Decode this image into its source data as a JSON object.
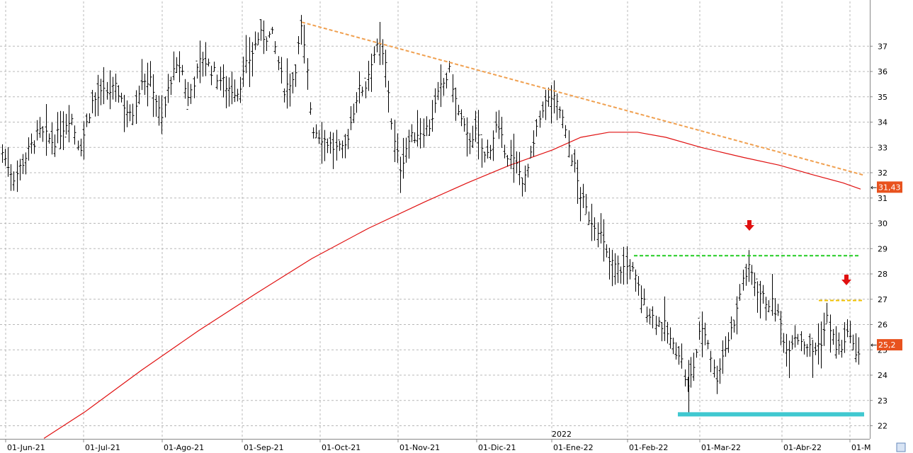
{
  "chart_data": {
    "type": "ohlc",
    "x_labels": [
      "01-Jun-21",
      "01-Jul-21",
      "01-Ago-21",
      "01-Sep-21",
      "01-Oct-21",
      "01-Nov-21",
      "01-Dic-21",
      "01-Ene-22",
      "01-Feb-22",
      "01-Mar-22",
      "01-Abr-22",
      "01-M"
    ],
    "year_label": "2022",
    "y_ticks": [
      22,
      23,
      24,
      25,
      26,
      27,
      28,
      29,
      30,
      31,
      32,
      33,
      34,
      35,
      36,
      37
    ],
    "ylim": [
      21.5,
      38.2
    ],
    "grid": true,
    "price_tags": [
      {
        "text": "31,43",
        "value": 31.43,
        "color": "#e8521e"
      },
      {
        "text": "25,2",
        "value": 25.2,
        "color": "#e8521e"
      }
    ],
    "bar_color": "#000000",
    "moving_average_color": "#e01010",
    "resistance_trendline": {
      "color": "#f0a050",
      "start": [
        0,
        37.95
      ],
      "end": [
        1,
        31.9
      ]
    },
    "horizontal_levels": [
      {
        "value": 28.75,
        "color": "#22cc22"
      },
      {
        "value": 26.95,
        "color": "#f0c000"
      },
      {
        "value": 22.45,
        "color": "#40c8d0"
      }
    ],
    "arrows": [
      {
        "color": "#e01010"
      },
      {
        "color": "#e01010"
      }
    ]
  }
}
